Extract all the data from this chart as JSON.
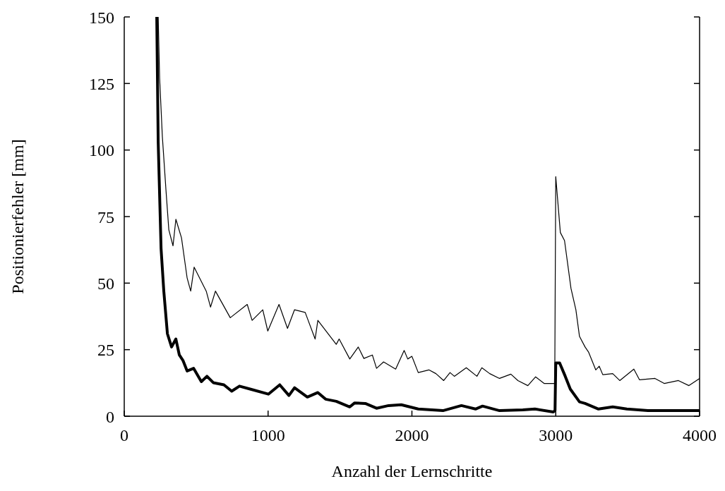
{
  "chart_data": {
    "type": "line",
    "xlabel": "Anzahl der Lernschritte",
    "ylabel": "Positionierfehler [mm]",
    "xlim": [
      0,
      4000
    ],
    "xticks": [
      0,
      1000,
      2000,
      3000,
      4000
    ],
    "ylim": [
      0,
      150
    ],
    "yticks": [
      0,
      25,
      50,
      75,
      100,
      125,
      150
    ],
    "marker": "none",
    "line_style": "solid",
    "series": [
      {
        "color": "#000000",
        "x": [
          236,
          246,
          265,
          290,
          310,
          339,
          359,
          398,
          437,
          462,
          486,
          570,
          600,
          634,
          737,
          855,
          889,
          963,
          998,
          1076,
          1135,
          1184,
          1258,
          1327,
          1346,
          1474,
          1494,
          1568,
          1627,
          1666,
          1725,
          1754,
          1803,
          1887,
          1946,
          1971,
          2000,
          2044,
          2118,
          2167,
          2221,
          2265,
          2295,
          2378,
          2452,
          2486,
          2541,
          2609,
          2688,
          2737,
          2806,
          2860,
          2919,
          2993,
          3000,
          3032,
          3061,
          3106,
          3140,
          3165,
          3204,
          3229,
          3278,
          3302,
          3327,
          3396,
          3445,
          3543,
          3582,
          3690,
          3754,
          3853,
          3926,
          4000
        ],
        "values": [
          150,
          127,
          105,
          85,
          70,
          64,
          74,
          67,
          52,
          47,
          56,
          47,
          41,
          47,
          37,
          42,
          36,
          40,
          32,
          42,
          33,
          40,
          39,
          29,
          36,
          27,
          29,
          21.5,
          26,
          21.7,
          23,
          18,
          20.4,
          17.7,
          24.7,
          21.5,
          22.5,
          16.4,
          17.4,
          16,
          13.4,
          16.4,
          15,
          18.2,
          15,
          18.2,
          16,
          14.2,
          15.8,
          13.4,
          11.5,
          14.8,
          12.3,
          12.3,
          90,
          69,
          66,
          48,
          40,
          30,
          26,
          24,
          17.4,
          18.8,
          15.6,
          16,
          13.4,
          17.7,
          13.7,
          14.2,
          12.3,
          13.4,
          11.5,
          14.2
        ]
      },
      {
        "color": "#000000",
        "x": [
          226,
          236,
          256,
          275,
          300,
          329,
          359,
          383,
          408,
          437,
          482,
          536,
          575,
          619,
          693,
          747,
          801,
          875,
          1002,
          1081,
          1145,
          1184,
          1273,
          1346,
          1400,
          1474,
          1568,
          1602,
          1676,
          1754,
          1838,
          1926,
          2044,
          2216,
          2344,
          2442,
          2491,
          2609,
          2771,
          2855,
          2983,
          2995,
          3000,
          3027,
          3066,
          3101,
          3165,
          3204,
          3297,
          3396,
          3494,
          3641,
          3818,
          4000
        ],
        "values": [
          150,
          103,
          63,
          47,
          31,
          26,
          29,
          23,
          21,
          17,
          18,
          13,
          15,
          12.6,
          11.8,
          9.4,
          11.3,
          10.2,
          8.3,
          11.8,
          7.8,
          10.7,
          7.2,
          8.9,
          6.4,
          5.6,
          3.5,
          5,
          4.8,
          3,
          4,
          4.3,
          2.7,
          2.1,
          4,
          2.7,
          3.8,
          2.1,
          2.4,
          2.7,
          1.6,
          2.1,
          20,
          20,
          15,
          10.2,
          5.4,
          4.8,
          2.7,
          3.5,
          2.7,
          2.1,
          2.1,
          2.1
        ]
      }
    ]
  }
}
